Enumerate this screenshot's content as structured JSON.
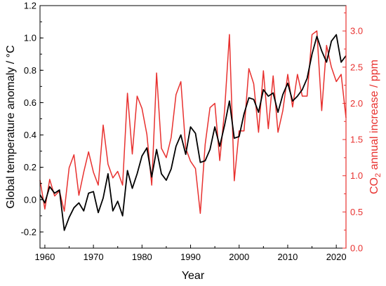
{
  "chart_data": {
    "type": "line",
    "xlabel": "Year",
    "ylabel_left": "Global temperature anomaly / °C",
    "ylabel_right": {
      "prefix": "CO",
      "sub": "2",
      "suffix": " annual increase / ppm"
    },
    "xlim": [
      1959,
      2022
    ],
    "ylim_left": [
      -0.3,
      1.2
    ],
    "ylim_right": [
      0.0,
      3.35
    ],
    "xticks": [
      1960,
      1970,
      1980,
      1990,
      2000,
      2010,
      2020
    ],
    "yticks_left": [
      -0.2,
      0.0,
      0.2,
      0.4,
      0.6,
      0.8,
      1.0,
      1.2
    ],
    "yticks_left_labels": [
      "-0.2",
      "0.0",
      "0.2",
      "0.4",
      "0.6",
      "0.8",
      "1.0",
      "1.2"
    ],
    "yticks_right": [
      0.0,
      0.5,
      1.0,
      1.5,
      2.0,
      2.5,
      3.0
    ],
    "yticks_right_labels": [
      "0.0",
      "0.5",
      "1.0",
      "1.5",
      "2.0",
      "2.5",
      "3.0"
    ],
    "colors": {
      "temperature": "#000000",
      "co2": "#e8312f",
      "right_axis": "#e8312f"
    },
    "grid": false,
    "years": [
      1959,
      1960,
      1961,
      1962,
      1963,
      1964,
      1965,
      1966,
      1967,
      1968,
      1969,
      1970,
      1971,
      1972,
      1973,
      1974,
      1975,
      1976,
      1977,
      1978,
      1979,
      1980,
      1981,
      1982,
      1983,
      1984,
      1985,
      1986,
      1987,
      1988,
      1989,
      1990,
      1991,
      1992,
      1993,
      1994,
      1995,
      1996,
      1997,
      1998,
      1999,
      2000,
      2001,
      2002,
      2003,
      2004,
      2005,
      2006,
      2007,
      2008,
      2009,
      2010,
      2011,
      2012,
      2013,
      2014,
      2015,
      2016,
      2017,
      2018,
      2019,
      2020,
      2021,
      2022
    ],
    "series": [
      {
        "axis": "left",
        "values": [
          0.03,
          -0.02,
          0.08,
          0.04,
          0.06,
          -0.19,
          -0.11,
          -0.05,
          -0.02,
          -0.07,
          0.04,
          0.05,
          -0.08,
          0.01,
          0.16,
          -0.07,
          -0.01,
          -0.1,
          0.18,
          0.07,
          0.16,
          0.27,
          0.32,
          0.14,
          0.31,
          0.16,
          0.12,
          0.19,
          0.33,
          0.4,
          0.28,
          0.45,
          0.41,
          0.23,
          0.24,
          0.31,
          0.45,
          0.33,
          0.46,
          0.61,
          0.38,
          0.39,
          0.53,
          0.63,
          0.62,
          0.54,
          0.68,
          0.64,
          0.66,
          0.54,
          0.65,
          0.72,
          0.61,
          0.64,
          0.68,
          0.75,
          0.9,
          1.01,
          0.92,
          0.85,
          0.98,
          1.02,
          0.85,
          0.89
        ]
      },
      {
        "axis": "right",
        "values": [
          0.94,
          0.54,
          0.95,
          0.72,
          0.79,
          0.51,
          1.11,
          1.29,
          0.73,
          1.05,
          1.33,
          1.05,
          0.87,
          1.7,
          1.16,
          0.97,
          1.06,
          0.87,
          2.14,
          1.3,
          2.1,
          1.93,
          1.57,
          0.87,
          2.42,
          1.38,
          1.25,
          1.53,
          2.12,
          2.3,
          1.38,
          1.2,
          1.1,
          0.48,
          1.43,
          1.94,
          2.0,
          1.21,
          1.9,
          2.95,
          0.93,
          1.62,
          1.62,
          2.48,
          2.27,
          1.6,
          2.45,
          1.65,
          2.38,
          1.6,
          1.9,
          2.4,
          1.95,
          2.4,
          2.1,
          2.1,
          2.95,
          3.0,
          1.9,
          2.8,
          2.5,
          2.3,
          2.4,
          1.8
        ]
      }
    ]
  }
}
